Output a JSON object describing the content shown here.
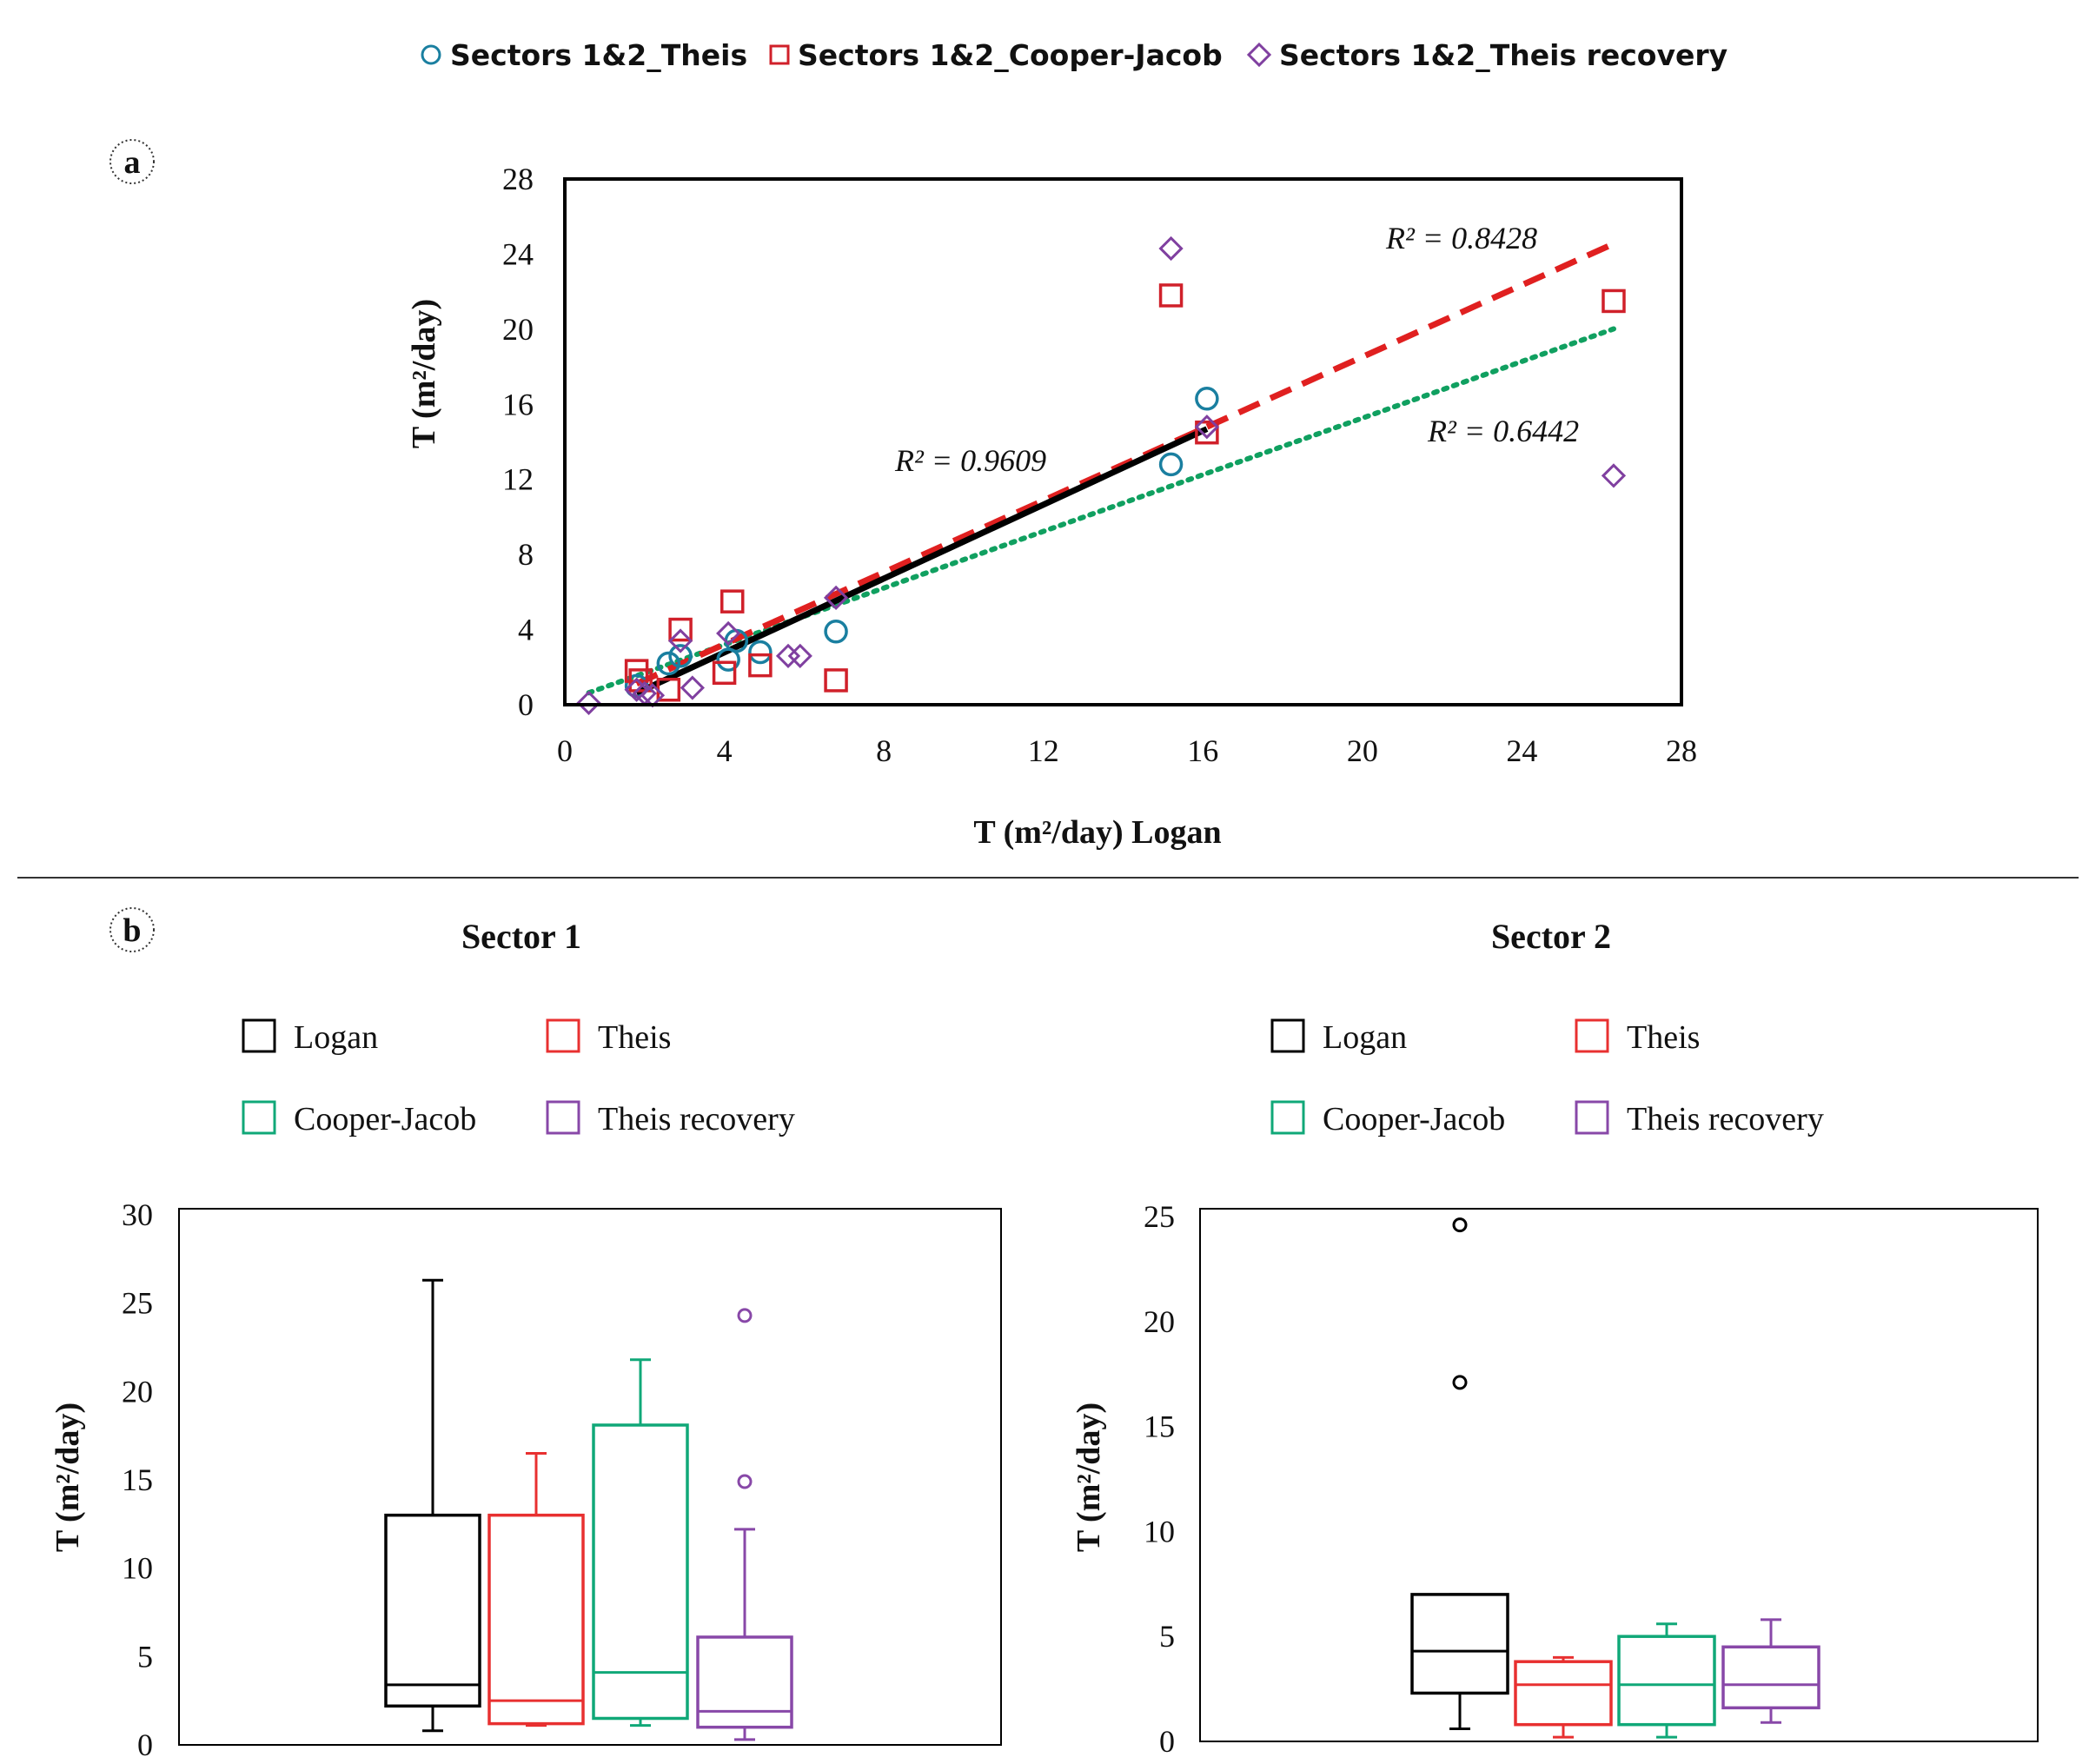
{
  "colors": {
    "theis": "#1a7fa0",
    "cooper_jacob": "#d0202a",
    "theis_recovery": "#8040a0",
    "logan": "#000000",
    "box_theis": "#e83030",
    "box_cooper": "#10a878",
    "box_recovery": "#8848a8",
    "trend_theis": "#000000",
    "trend_cooper": "#e02020",
    "trend_recovery": "#10a060"
  },
  "chart_data": [
    {
      "panel": "a",
      "type": "scatter",
      "panel_label": "a",
      "xlabel": "T (m²/day) Logan",
      "ylabel": "T (m²/day)",
      "xlim": [
        0,
        28
      ],
      "ylim": [
        0,
        28
      ],
      "x_ticks": [
        "0",
        "4",
        "8",
        "12",
        "16",
        "20",
        "24",
        "28"
      ],
      "y_ticks": [
        "0",
        "4",
        "8",
        "12",
        "16",
        "20",
        "24",
        "28"
      ],
      "legend": [
        "Sectors 1&2_Theis",
        "Sectors 1&2_Cooper-Jacob",
        "Sectors 1&2_Theis recovery"
      ],
      "series": [
        {
          "name": "Sectors 1&2_Theis",
          "marker": "circle",
          "points": [
            [
              1.8,
              1.0
            ],
            [
              2.6,
              2.2
            ],
            [
              2.9,
              2.6
            ],
            [
              4.1,
              2.4
            ],
            [
              4.3,
              3.4
            ],
            [
              4.9,
              2.8
            ],
            [
              6.8,
              3.9
            ],
            [
              15.2,
              12.8
            ],
            [
              16.1,
              16.3
            ]
          ],
          "trendline": {
            "x_range": [
              1.8,
              16.1
            ],
            "r2": "R² = 0.9609",
            "style": "solid"
          }
        },
        {
          "name": "Sectors 1&2_Cooper-Jacob",
          "marker": "square",
          "points": [
            [
              1.8,
              1.8
            ],
            [
              1.9,
              1.3
            ],
            [
              2.6,
              0.8
            ],
            [
              2.9,
              4.0
            ],
            [
              4.0,
              1.7
            ],
            [
              4.2,
              5.5
            ],
            [
              4.9,
              2.1
            ],
            [
              6.8,
              1.3
            ],
            [
              15.2,
              21.8
            ],
            [
              16.1,
              14.5
            ],
            [
              26.3,
              21.5
            ]
          ],
          "trendline": {
            "x_range": [
              1.8,
              26.3
            ],
            "r2": "R² = 0.8428",
            "style": "dashed"
          }
        },
        {
          "name": "Sectors 1&2_Theis recovery",
          "marker": "diamond",
          "points": [
            [
              0.6,
              0.1
            ],
            [
              1.8,
              0.8
            ],
            [
              2.0,
              0.6
            ],
            [
              2.2,
              0.5
            ],
            [
              2.9,
              3.4
            ],
            [
              3.2,
              0.9
            ],
            [
              4.1,
              3.8
            ],
            [
              5.6,
              2.6
            ],
            [
              5.9,
              2.6
            ],
            [
              6.8,
              5.7
            ],
            [
              15.2,
              24.3
            ],
            [
              16.1,
              14.8
            ],
            [
              26.3,
              12.2
            ]
          ],
          "trendline": {
            "x_range": [
              0.6,
              26.3
            ],
            "r2": "R² = 0.6442",
            "style": "dotted"
          }
        }
      ]
    },
    {
      "panel": "b",
      "panel_label": "b",
      "type": "boxplot",
      "title": "Sector 1",
      "ylabel": "T (m²/day)",
      "ylim": [
        0,
        30
      ],
      "y_ticks": [
        "0",
        "5",
        "10",
        "15",
        "20",
        "25",
        "30"
      ],
      "legend": [
        "Logan",
        "Theis",
        "Cooper-Jacob",
        "Theis recovery"
      ],
      "boxes": [
        {
          "name": "Logan",
          "whisker_low": 0.8,
          "q1": 2.2,
          "median": 3.4,
          "q3": 13.0,
          "whisker_high": 26.3,
          "outliers": []
        },
        {
          "name": "Theis",
          "whisker_low": 1.1,
          "q1": 1.2,
          "median": 2.5,
          "q3": 13.0,
          "whisker_high": 16.5,
          "outliers": []
        },
        {
          "name": "Cooper-Jacob",
          "whisker_low": 1.1,
          "q1": 1.5,
          "median": 4.1,
          "q3": 18.1,
          "whisker_high": 21.8,
          "outliers": []
        },
        {
          "name": "Theis recovery",
          "whisker_low": 0.3,
          "q1": 1.0,
          "median": 1.9,
          "q3": 6.1,
          "whisker_high": 12.2,
          "outliers": [
            24.3,
            14.9
          ]
        }
      ]
    },
    {
      "panel": "b",
      "type": "boxplot",
      "title": "Sector 2",
      "ylabel": "T (m²/day)",
      "ylim": [
        0,
        25
      ],
      "y_ticks": [
        "0",
        "5",
        "10",
        "15",
        "20",
        "25"
      ],
      "legend": [
        "Logan",
        "Theis",
        "Cooper-Jacob",
        "Theis recovery"
      ],
      "boxes": [
        {
          "name": "Logan",
          "whisker_low": 0.6,
          "q1": 2.3,
          "median": 4.3,
          "q3": 7.0,
          "whisker_high": 7.0,
          "outliers": [
            24.6,
            17.1
          ]
        },
        {
          "name": "Theis",
          "whisker_low": 0.2,
          "q1": 0.8,
          "median": 2.7,
          "q3": 3.8,
          "whisker_high": 4.0,
          "outliers": []
        },
        {
          "name": "Cooper-Jacob",
          "whisker_low": 0.2,
          "q1": 0.8,
          "median": 2.7,
          "q3": 5.0,
          "whisker_high": 5.6,
          "outliers": []
        },
        {
          "name": "Theis recovery",
          "whisker_low": 0.9,
          "q1": 1.6,
          "median": 2.7,
          "q3": 4.5,
          "whisker_high": 5.8,
          "outliers": []
        }
      ]
    }
  ]
}
